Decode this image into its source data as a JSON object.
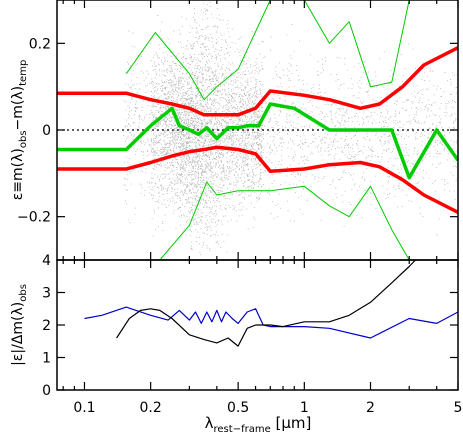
{
  "chart_data": [
    {
      "type": "scatter",
      "panel": "top",
      "ylabel": {
        "pre": "ε≡m(λ)",
        "sub1": "obs",
        "mid": "−m(λ)",
        "sub2": "temp"
      },
      "xscale": "log",
      "xlim": [
        0.075,
        5.0
      ],
      "ylim": [
        -0.3,
        0.3
      ],
      "yticks": [
        -0.2,
        0,
        0.2
      ],
      "ytick_labels": [
        "−0.2",
        "0",
        "0.2"
      ],
      "zero_line": {
        "y": 0,
        "style": "dotted"
      },
      "background": "dense cloud of individual black residual points",
      "series": [
        {
          "color": "#00cc00",
          "width": 3.5,
          "x": [
            0.075,
            0.155,
            0.2,
            0.25,
            0.27,
            0.3,
            0.33,
            0.36,
            0.4,
            0.45,
            0.5,
            0.55,
            0.62,
            0.7,
            0.9,
            1.3,
            1.6,
            2.0,
            2.5,
            3.0,
            4.0,
            5.0
          ],
          "y": [
            -0.045,
            -0.045,
            0.01,
            0.05,
            0.01,
            0.0,
            -0.01,
            0.005,
            -0.02,
            0.005,
            0.005,
            0.01,
            0.01,
            0.06,
            0.05,
            0.0,
            0.0,
            0.0,
            0.0,
            -0.11,
            0.0,
            -0.07
          ]
        },
        {
          "color": "#00cc00",
          "width": 1,
          "x": [
            0.155,
            0.21,
            0.3,
            0.35,
            0.4,
            0.5,
            0.7,
            1.0,
            1.3,
            1.6,
            2.0,
            2.5,
            3.0,
            5.0
          ],
          "y": [
            0.13,
            0.225,
            0.13,
            0.07,
            0.1,
            0.14,
            0.3,
            0.3,
            0.2,
            0.25,
            0.1,
            0.11,
            0.3,
            0.3
          ]
        },
        {
          "color": "#00cc00",
          "width": 1,
          "x": [
            0.155,
            0.22,
            0.3,
            0.36,
            0.4,
            0.5,
            0.7,
            1.0,
            1.3,
            1.6,
            2.0,
            2.5,
            3.0,
            5.0
          ],
          "y": [
            -0.3,
            -0.3,
            -0.22,
            -0.12,
            -0.15,
            -0.14,
            -0.14,
            -0.13,
            -0.175,
            -0.2,
            -0.13,
            -0.23,
            -0.3,
            -0.3
          ]
        },
        {
          "color": "#ff0000",
          "width": 3.5,
          "x": [
            0.075,
            0.155,
            0.2,
            0.25,
            0.3,
            0.35,
            0.4,
            0.5,
            0.6,
            0.7,
            1.0,
            1.3,
            1.8,
            2.2,
            2.8,
            3.5,
            5.0
          ],
          "y": [
            0.085,
            0.085,
            0.07,
            0.06,
            0.05,
            0.035,
            0.035,
            0.035,
            0.05,
            0.09,
            0.08,
            0.07,
            0.05,
            0.06,
            0.1,
            0.15,
            0.19
          ]
        },
        {
          "color": "#ff0000",
          "width": 3.5,
          "x": [
            0.075,
            0.155,
            0.2,
            0.25,
            0.3,
            0.35,
            0.4,
            0.5,
            0.6,
            0.7,
            1.0,
            1.3,
            1.8,
            2.2,
            2.8,
            3.5,
            5.0
          ],
          "y": [
            -0.09,
            -0.09,
            -0.075,
            -0.06,
            -0.05,
            -0.045,
            -0.04,
            -0.045,
            -0.055,
            -0.095,
            -0.09,
            -0.08,
            -0.075,
            -0.085,
            -0.115,
            -0.15,
            -0.19
          ]
        }
      ]
    },
    {
      "type": "line",
      "panel": "bottom",
      "xlabel": {
        "pre": "λ",
        "sub": "rest−frame",
        "post": " [μm]"
      },
      "ylabel": {
        "pre": "|ε|/Δm(λ)",
        "sub": "obs"
      },
      "xscale": "log",
      "xlim": [
        0.075,
        5.0
      ],
      "ylim": [
        0,
        4
      ],
      "yticks": [
        0,
        1,
        2,
        3,
        4
      ],
      "ytick_labels": [
        "0",
        "1",
        "2",
        "3",
        "4"
      ],
      "xticks": [
        0.1,
        0.2,
        0.5,
        1,
        2,
        5
      ],
      "xtick_labels": [
        "0.1",
        "0.2",
        "0.5",
        "1",
        "2",
        "5"
      ],
      "series": [
        {
          "color": "#0000cc",
          "width": 1.2,
          "x": [
            0.1,
            0.12,
            0.155,
            0.2,
            0.24,
            0.27,
            0.3,
            0.32,
            0.34,
            0.36,
            0.38,
            0.4,
            0.42,
            0.44,
            0.47,
            0.5,
            0.55,
            0.6,
            0.65,
            0.7,
            1.0,
            1.3,
            2.0,
            3.0,
            4.0,
            5.0
          ],
          "y": [
            2.2,
            2.3,
            2.55,
            2.3,
            2.15,
            2.45,
            2.15,
            2.4,
            2.05,
            2.4,
            2.1,
            2.45,
            2.1,
            2.4,
            2.2,
            2.05,
            2.4,
            2.5,
            2.0,
            1.95,
            1.95,
            1.9,
            1.6,
            2.2,
            2.05,
            2.4
          ]
        },
        {
          "color": "#000000",
          "width": 1.2,
          "x": [
            0.14,
            0.16,
            0.18,
            0.2,
            0.22,
            0.25,
            0.3,
            0.35,
            0.4,
            0.45,
            0.5,
            0.55,
            0.6,
            0.7,
            0.8,
            1.0,
            1.3,
            1.6,
            2.0,
            2.5,
            3.0,
            3.2
          ],
          "y": [
            1.6,
            2.2,
            2.45,
            2.5,
            2.45,
            2.2,
            1.7,
            1.55,
            1.45,
            1.6,
            1.35,
            1.9,
            2.0,
            2.0,
            1.95,
            2.1,
            2.1,
            2.3,
            2.7,
            3.3,
            3.8,
            4.0
          ]
        }
      ]
    }
  ]
}
